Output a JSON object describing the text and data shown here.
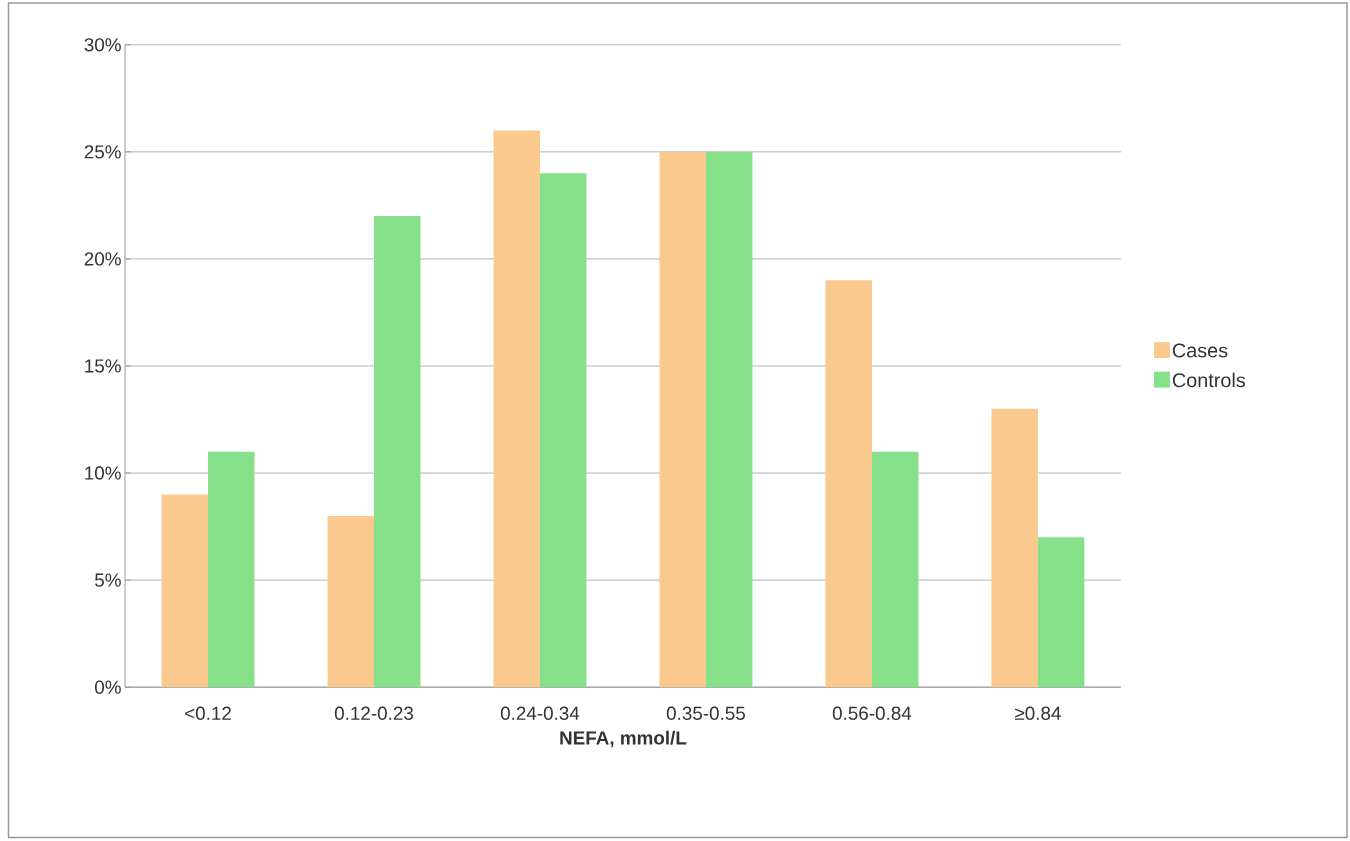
{
  "chart_data": {
    "type": "bar",
    "xlabel": "NEFA, mmol/L",
    "categories": [
      "<0.12",
      "0.12-0.23",
      "0.24-0.34",
      "0.35-0.55",
      "0.56-0.84",
      "≥0.84"
    ],
    "series": [
      {
        "name": "Cases",
        "color": "#fac98e",
        "values": [
          9,
          8,
          26,
          25,
          19,
          13
        ]
      },
      {
        "name": "Controls",
        "color": "#86e08a",
        "values": [
          11,
          22,
          24,
          25,
          11,
          7
        ]
      }
    ],
    "ylim": [
      0,
      30
    ],
    "yticks": [
      {
        "value": 0,
        "label": "0%"
      },
      {
        "value": 5,
        "label": "5%"
      },
      {
        "value": 10,
        "label": "10%"
      },
      {
        "value": 15,
        "label": "15%"
      },
      {
        "value": 20,
        "label": "20%"
      },
      {
        "value": 25,
        "label": "25%"
      },
      {
        "value": 30,
        "label": "30%"
      }
    ],
    "grid": "y",
    "legend": "right"
  }
}
